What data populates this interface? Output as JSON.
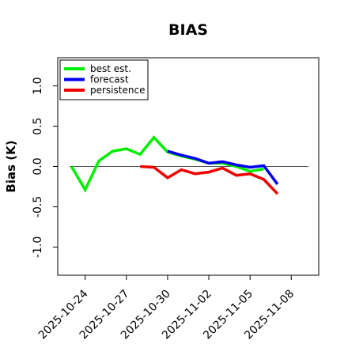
{
  "chart_data": {
    "type": "line",
    "title": "BIAS",
    "xlabel": "",
    "ylabel": "Bias (K)",
    "ylim": [
      -1.35,
      1.35
    ],
    "xlim": [
      "2025-10-22",
      "2025-11-10"
    ],
    "yticks": [
      -1.0,
      -0.5,
      0.0,
      0.5,
      1.0
    ],
    "ytick_labels": [
      "-1.0",
      "-0.5",
      "0.0",
      "0.5",
      "1.0"
    ],
    "xticks": [
      "2025-10-24",
      "2025-10-27",
      "2025-10-30",
      "2025-11-02",
      "2025-11-05",
      "2025-11-08"
    ],
    "highlight_tick": "2025-10-30",
    "highlight_color": "#228b22",
    "zero_line": true,
    "grid": false,
    "legend_position": "top-left",
    "series": [
      {
        "name": "best est.",
        "color": "#00ee00",
        "x": [
          "2025-10-23",
          "2025-10-24",
          "2025-10-25",
          "2025-10-26",
          "2025-10-27",
          "2025-10-28",
          "2025-10-29",
          "2025-10-30",
          "2025-10-31",
          "2025-11-01",
          "2025-11-02",
          "2025-11-03",
          "2025-11-04",
          "2025-11-05",
          "2025-11-06"
        ],
        "values": [
          0.0,
          -0.29,
          0.07,
          0.19,
          0.22,
          0.15,
          0.36,
          0.18,
          0.13,
          0.09,
          0.04,
          0.04,
          0.0,
          -0.06,
          -0.03
        ]
      },
      {
        "name": "forecast",
        "color": "#0000ee",
        "x": [
          "2025-10-30",
          "2025-10-31",
          "2025-11-01",
          "2025-11-02",
          "2025-11-03",
          "2025-11-04",
          "2025-11-05",
          "2025-11-06",
          "2025-11-07"
        ],
        "values": [
          0.19,
          0.14,
          0.1,
          0.04,
          0.06,
          0.02,
          -0.01,
          0.01,
          -0.22
        ]
      },
      {
        "name": "persistence",
        "color": "#ee0000",
        "x": [
          "2025-10-28",
          "2025-10-29",
          "2025-10-30",
          "2025-10-31",
          "2025-11-01",
          "2025-11-02",
          "2025-11-03",
          "2025-11-04",
          "2025-11-05",
          "2025-11-06",
          "2025-11-07"
        ],
        "values": [
          0.0,
          -0.01,
          -0.14,
          -0.04,
          -0.09,
          -0.07,
          -0.02,
          -0.11,
          -0.09,
          -0.16,
          -0.34
        ]
      }
    ]
  }
}
